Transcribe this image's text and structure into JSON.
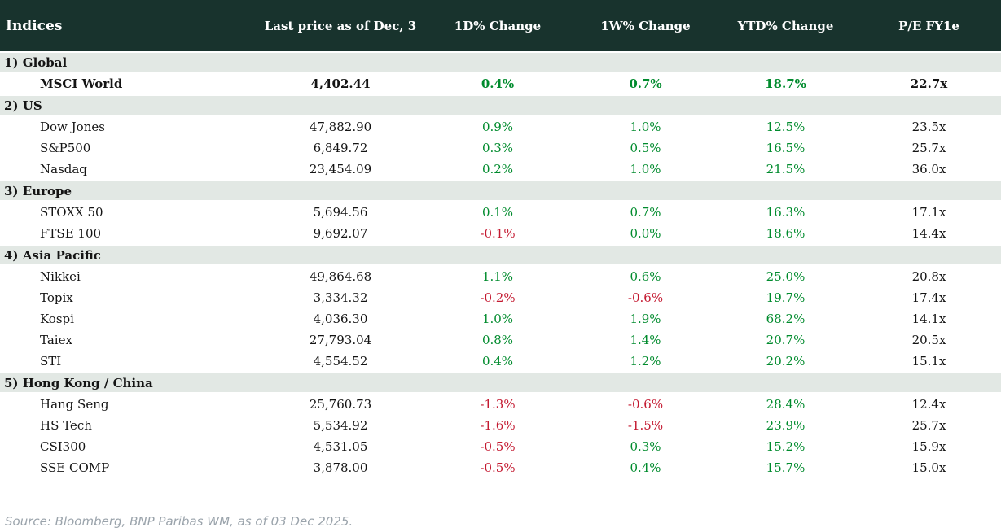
{
  "colors": {
    "header_bg": "#18332d",
    "header_text": "#ffffff",
    "section_bg": "#e2e8e4",
    "positive": "#008b2d",
    "negative": "#c41a31",
    "text": "#141414",
    "footer_text": "#9aa3ab"
  },
  "chart_data": {
    "type": "table",
    "title": "Indices",
    "value_columns": [
      "Last price as of Dec, 3",
      "1D% Change",
      "1W% Change",
      "YTD% Change",
      "P/E FY1e"
    ],
    "sections": [
      {
        "label": "1) Global",
        "rows": [
          {
            "name": "MSCI World",
            "bold": true,
            "values": [
              "4,402.44",
              "0.4%",
              "0.7%",
              "18.7%",
              "22.7x"
            ]
          }
        ]
      },
      {
        "label": "2) US",
        "rows": [
          {
            "name": "Dow Jones",
            "values": [
              "47,882.90",
              "0.9%",
              "1.0%",
              "12.5%",
              "23.5x"
            ]
          },
          {
            "name": "S&P500",
            "values": [
              "6,849.72",
              "0.3%",
              "0.5%",
              "16.5%",
              "25.7x"
            ]
          },
          {
            "name": "Nasdaq",
            "values": [
              "23,454.09",
              "0.2%",
              "1.0%",
              "21.5%",
              "36.0x"
            ]
          }
        ]
      },
      {
        "label": "3) Europe",
        "rows": [
          {
            "name": "STOXX 50",
            "values": [
              "5,694.56",
              "0.1%",
              "0.7%",
              "16.3%",
              "17.1x"
            ]
          },
          {
            "name": "FTSE 100",
            "values": [
              "9,692.07",
              "-0.1%",
              "0.0%",
              "18.6%",
              "14.4x"
            ]
          }
        ]
      },
      {
        "label": "4) Asia Pacific",
        "rows": [
          {
            "name": "Nikkei",
            "values": [
              "49,864.68",
              "1.1%",
              "0.6%",
              "25.0%",
              "20.8x"
            ]
          },
          {
            "name": "Topix",
            "values": [
              "3,334.32",
              "-0.2%",
              "-0.6%",
              "19.7%",
              "17.4x"
            ]
          },
          {
            "name": "Kospi",
            "values": [
              "4,036.30",
              "1.0%",
              "1.9%",
              "68.2%",
              "14.1x"
            ]
          },
          {
            "name": "Taiex",
            "values": [
              "27,793.04",
              "0.8%",
              "1.4%",
              "20.7%",
              "20.5x"
            ]
          },
          {
            "name": "STI",
            "values": [
              "4,554.52",
              "0.4%",
              "1.2%",
              "20.2%",
              "15.1x"
            ]
          }
        ]
      },
      {
        "label": "5) Hong Kong / China",
        "rows": [
          {
            "name": "Hang Seng",
            "values": [
              "25,760.73",
              "-1.3%",
              "-0.6%",
              "28.4%",
              "12.4x"
            ]
          },
          {
            "name": "HS Tech",
            "values": [
              "5,534.92",
              "-1.6%",
              "-1.5%",
              "23.9%",
              "25.7x"
            ]
          },
          {
            "name": "CSI300",
            "values": [
              "4,531.05",
              "-0.5%",
              "0.3%",
              "15.2%",
              "15.9x"
            ]
          },
          {
            "name": "SSE COMP",
            "values": [
              "3,878.00",
              "-0.5%",
              "0.4%",
              "15.7%",
              "15.0x"
            ]
          }
        ]
      }
    ],
    "source_note": "Source: Bloomberg, BNP Paribas WM, as of 03 Dec 2025."
  }
}
